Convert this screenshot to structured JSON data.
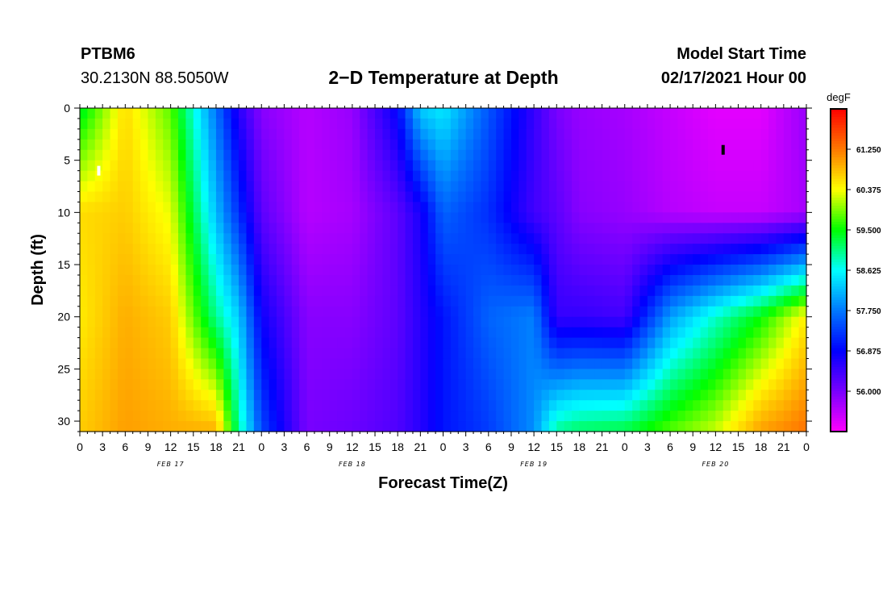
{
  "header": {
    "station": "PTBM6",
    "coords": "30.2130N 88.5050W",
    "title": "2−D Temperature at Depth",
    "model_label": "Model Start Time",
    "model_time": "02/17/2021 Hour 00"
  },
  "chart_data": {
    "type": "heatmap",
    "title": "2−D Temperature at Depth",
    "xlabel": "Forecast Time(Z)",
    "ylabel": "Depth (ft)",
    "x_ticks": [
      "0",
      "3",
      "6",
      "9",
      "12",
      "15",
      "18",
      "21",
      "0",
      "3",
      "6",
      "9",
      "12",
      "15",
      "18",
      "21",
      "0",
      "3",
      "6",
      "9",
      "12",
      "15",
      "18",
      "21",
      "0",
      "3",
      "6",
      "9",
      "12",
      "15",
      "18",
      "21",
      "0"
    ],
    "day_labels": [
      "FEB 17",
      "FEB 18",
      "FEB 19",
      "FEB 20"
    ],
    "y_ticks": [
      "0",
      "5",
      "10",
      "15",
      "20",
      "25",
      "30"
    ],
    "x_range_hours": [
      0,
      96
    ],
    "y_range_ft": [
      0,
      31
    ],
    "y_inverted": true,
    "colorbar": {
      "unit": "degF",
      "range": [
        55.125,
        62.125
      ],
      "labels": [
        "61.250",
        "60.375",
        "59.500",
        "58.625",
        "57.750",
        "56.875",
        "56.000"
      ],
      "colormap": "rainbow magenta-blue-cyan-green-yellow-red"
    },
    "markers": [
      {
        "type": "max",
        "hour": 2.5,
        "depth_ft": 6,
        "color": "#ffffff"
      },
      {
        "type": "min",
        "hour": 85,
        "depth_ft": 4,
        "color": "#000000"
      }
    ],
    "approx_field": {
      "hours": [
        0,
        6,
        12,
        18,
        21,
        24,
        30,
        36,
        42,
        45,
        48,
        54,
        60,
        63,
        66,
        72,
        78,
        84,
        90,
        96
      ],
      "depths_ft": [
        0,
        10,
        20,
        31
      ],
      "values_degF": [
        [
          59.3,
          60.6,
          59.8,
          57.7,
          56.6,
          55.9,
          55.6,
          55.8,
          56.9,
          58.3,
          58.5,
          57.5,
          56.5,
          56.0,
          55.8,
          55.7,
          55.5,
          55.3,
          55.3,
          55.8
        ],
        [
          60.6,
          60.7,
          60.3,
          58.2,
          57.2,
          56.2,
          55.6,
          55.7,
          56.2,
          56.7,
          57.6,
          57.2,
          56.4,
          56.2,
          55.9,
          55.8,
          55.6,
          55.5,
          55.5,
          55.7
        ],
        [
          60.5,
          60.9,
          60.7,
          59.0,
          58.3,
          56.8,
          55.9,
          55.9,
          56.2,
          56.6,
          57.0,
          57.6,
          57.8,
          56.5,
          56.5,
          56.4,
          58.0,
          58.8,
          59.5,
          60.5
        ],
        [
          60.7,
          61.0,
          60.9,
          60.9,
          59.0,
          57.4,
          56.0,
          56.1,
          56.3,
          56.6,
          57.0,
          57.3,
          57.9,
          59.0,
          59.2,
          59.3,
          59.8,
          60.2,
          61.0,
          61.3
        ]
      ]
    }
  }
}
